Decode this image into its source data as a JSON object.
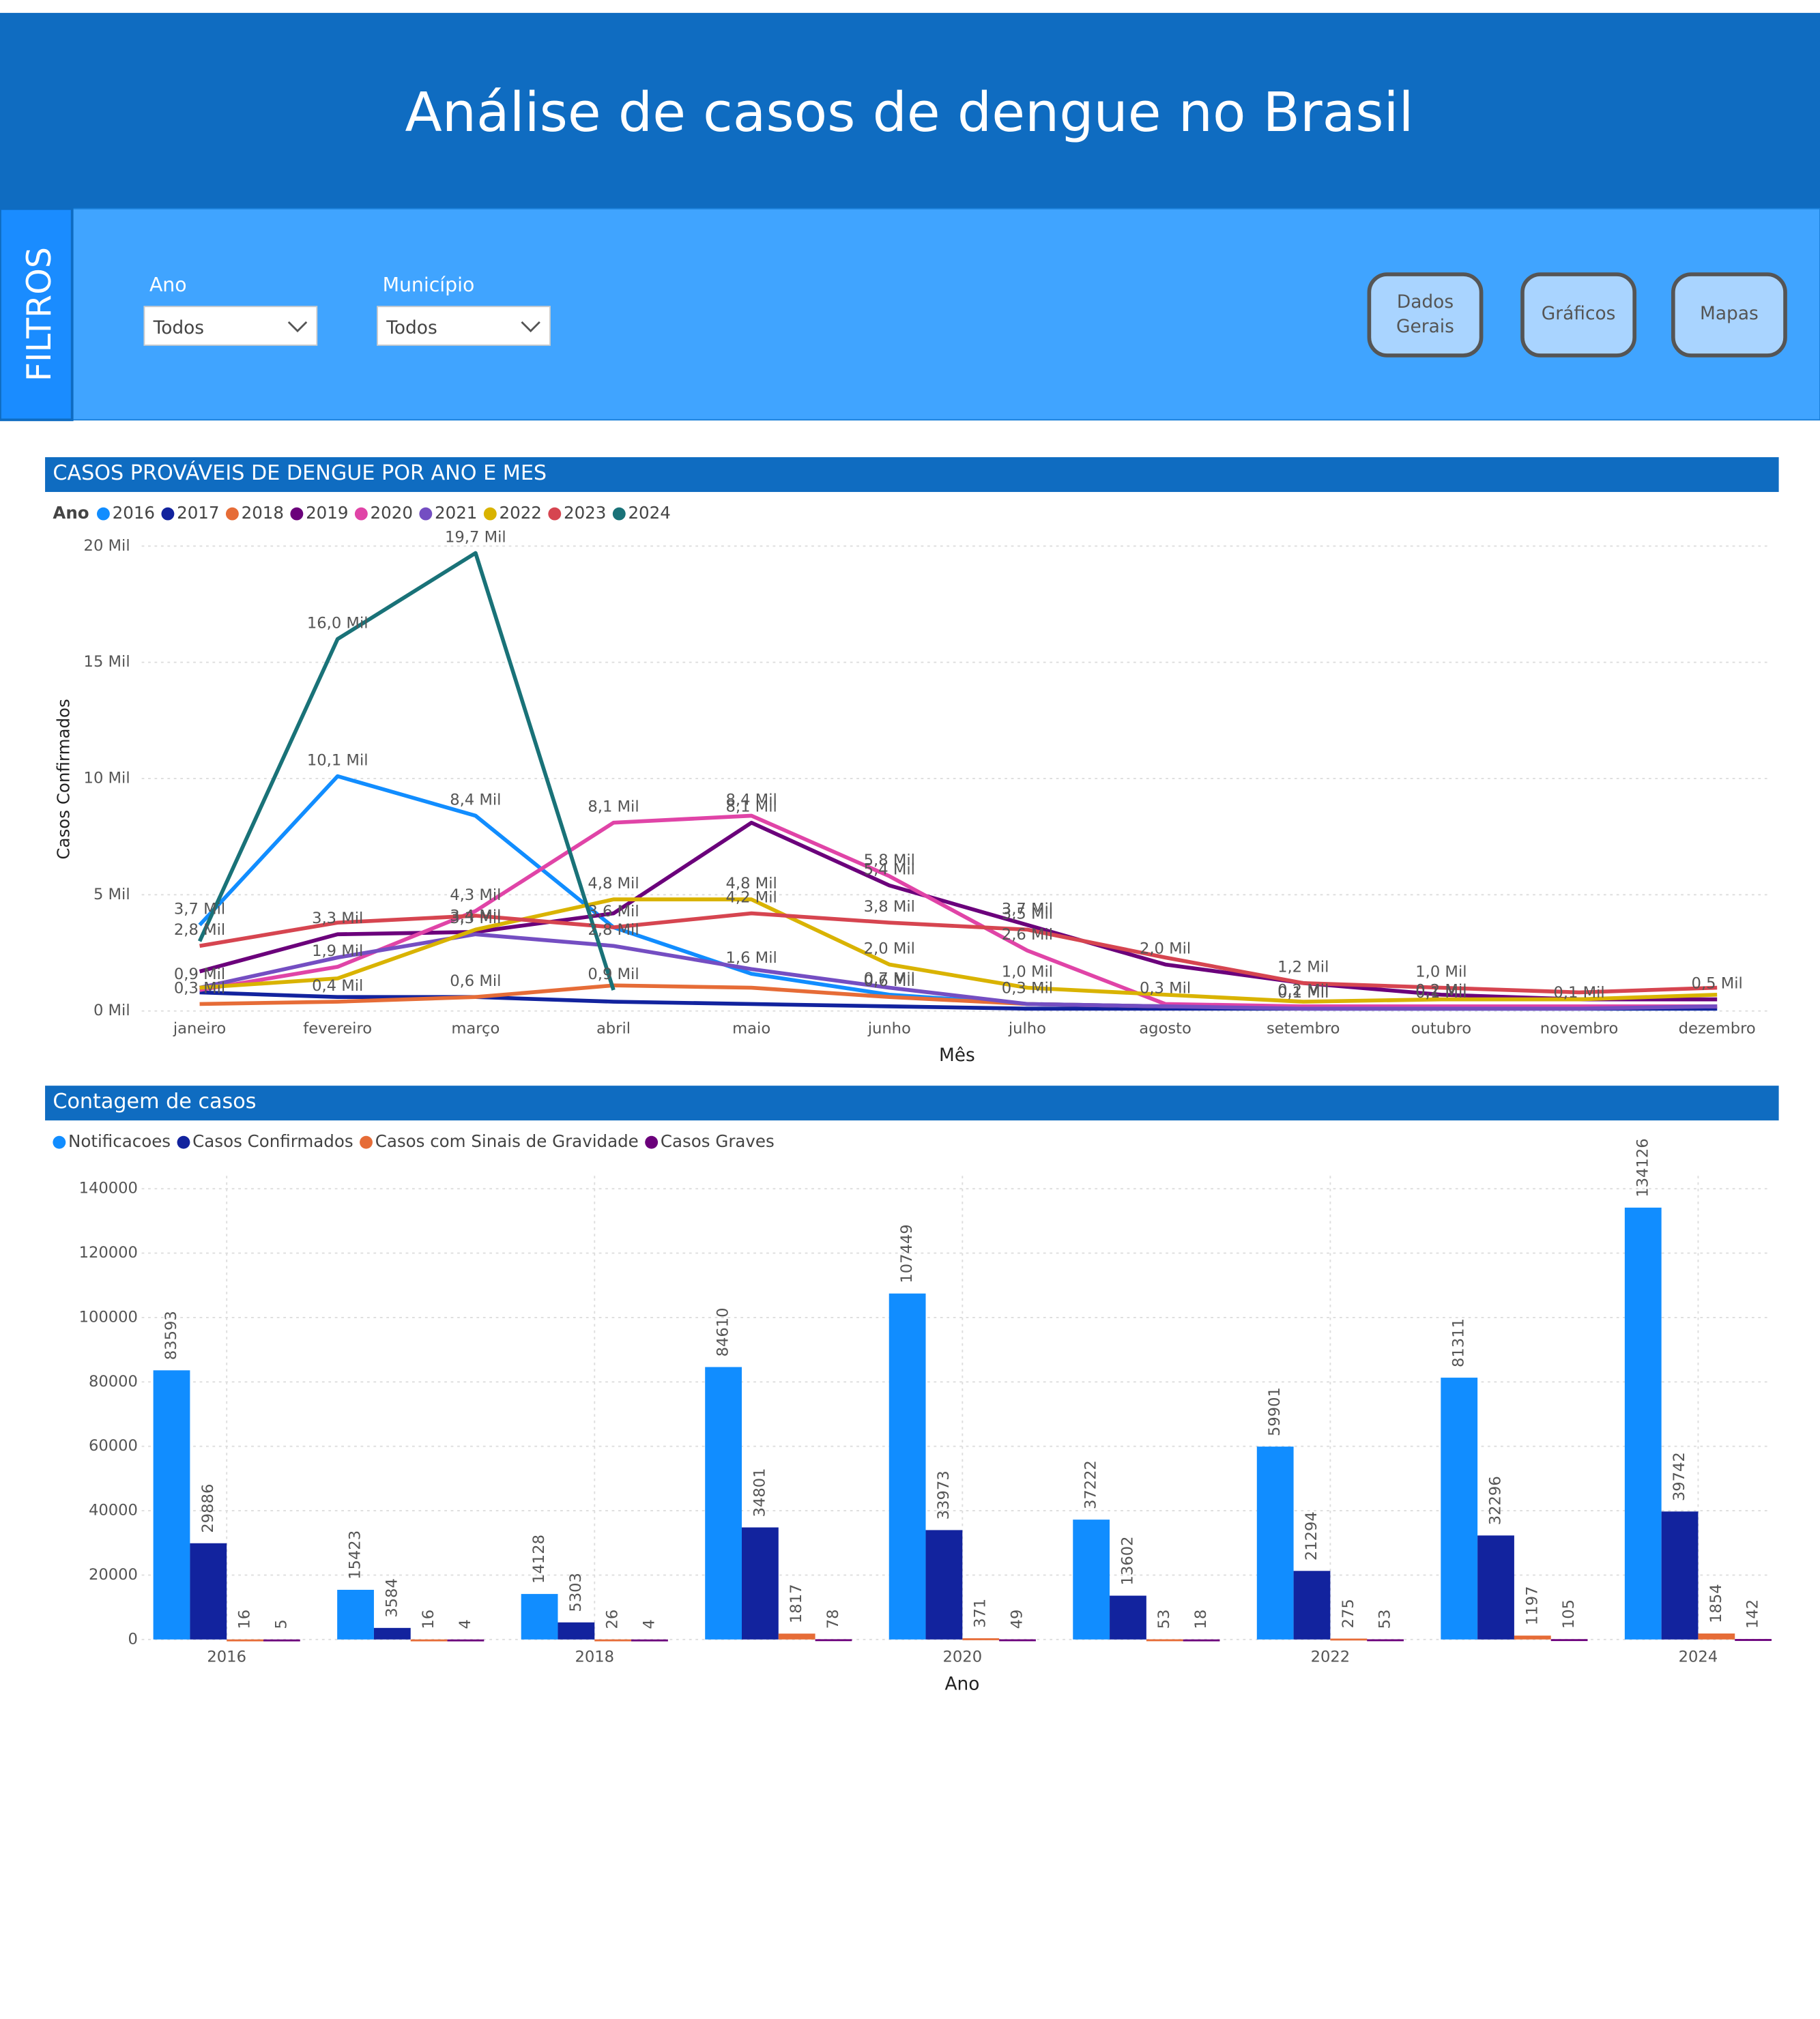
{
  "header": {
    "title": "Análise de casos de dengue no Brasil"
  },
  "filters": {
    "title": "FILTROS",
    "fields": [
      {
        "label": "Ano",
        "value": "Todos"
      },
      {
        "label": "Município",
        "value": "Todos"
      }
    ]
  },
  "buttons": [
    "Dados Gerais",
    "Gráficos",
    "Mapas"
  ],
  "chart_data": [
    {
      "type": "line",
      "title": "CASOS PROVÁVEIS DE DENGUE POR ANO E MES",
      "legend_title": "Ano",
      "x_label": "Mês",
      "y_label": "Casos Confirmados",
      "categories": [
        "janeiro",
        "fevereiro",
        "março",
        "abril",
        "maio",
        "junho",
        "julho",
        "agosto",
        "setembro",
        "outubro",
        "novembro",
        "dezembro"
      ],
      "ylim": [
        0,
        20000
      ],
      "yticks": [
        {
          "value": 0,
          "label": "0 Mil"
        },
        {
          "value": 5000,
          "label": "5 Mil"
        },
        {
          "value": 10000,
          "label": "10 Mil"
        },
        {
          "value": 15000,
          "label": "15 Mil"
        },
        {
          "value": 20000,
          "label": "20 Mil"
        }
      ],
      "grid": true,
      "series": [
        {
          "name": "2016",
          "color": "#118dff",
          "values": [
            3700,
            10100,
            8400,
            3600,
            1600,
            700,
            300,
            200,
            100,
            100,
            100,
            100
          ],
          "value_labels": [
            "3,7 Mil",
            "10,1 Mil",
            "8,4 Mil",
            "3,6 Mil",
            "1,6 Mil",
            "0,7 Mil",
            "0,3 Mil",
            null,
            null,
            null,
            null,
            null
          ]
        },
        {
          "name": "2017",
          "color": "#12239e",
          "values": [
            800,
            600,
            600,
            400,
            300,
            200,
            100,
            100,
            100,
            100,
            100,
            100
          ],
          "value_labels": [
            null,
            null,
            null,
            null,
            null,
            null,
            null,
            null,
            "0,1 Mil",
            "0,1 Mil",
            null,
            null
          ]
        },
        {
          "name": "2018",
          "color": "#e66c37",
          "values": [
            300,
            400,
            600,
            1100,
            1000,
            600,
            300,
            200,
            200,
            200,
            200,
            200
          ],
          "value_labels": [
            "0,3 Mil",
            "0,4 Mil",
            "0,6 Mil",
            null,
            null,
            "0,6 Mil",
            null,
            null,
            "0,2 Mil",
            "0,2 Mil",
            null,
            null
          ]
        },
        {
          "name": "2019",
          "color": "#6b007b",
          "values": [
            1700,
            3300,
            3400,
            4200,
            8100,
            5400,
            3700,
            2000,
            1200,
            700,
            500,
            500
          ],
          "value_labels": [
            null,
            "3,3 Mil",
            "3,4 Mil",
            null,
            "8,1 Mil",
            "5,4 Mil",
            "3,7 Mil",
            "2,0 Mil",
            "1,2 Mil",
            null,
            null,
            "0,5 Mil"
          ]
        },
        {
          "name": "2020",
          "color": "#e044a7",
          "values": [
            900,
            1900,
            4300,
            8100,
            8400,
            5800,
            2600,
            300,
            200,
            200,
            200,
            200
          ],
          "value_labels": [
            "0,9 Mil",
            "1,9 Mil",
            "4,3 Mil",
            "8,1 Mil",
            "8,4 Mil",
            "5,8 Mil",
            "2,6 Mil",
            "0,3 Mil",
            null,
            null,
            null,
            null
          ]
        },
        {
          "name": "2021",
          "color": "#744ec2",
          "values": [
            1000,
            2300,
            3300,
            2800,
            1800,
            1000,
            300,
            200,
            100,
            100,
            100,
            200
          ],
          "value_labels": [
            null,
            null,
            "3,3 Mil",
            "2,8 Mil",
            null,
            null,
            null,
            null,
            null,
            null,
            "0,1 Mil",
            null
          ]
        },
        {
          "name": "2022",
          "color": "#d9b300",
          "values": [
            1000,
            1400,
            3500,
            4800,
            4800,
            2000,
            1000,
            700,
            400,
            500,
            500,
            700
          ],
          "value_labels": [
            null,
            null,
            null,
            "4,8 Mil",
            "4,8 Mil",
            "2,0 Mil",
            "1,0 Mil",
            null,
            null,
            null,
            null,
            null
          ]
        },
        {
          "name": "2023",
          "color": "#d64550",
          "values": [
            2800,
            3800,
            4100,
            3600,
            4200,
            3800,
            3500,
            2300,
            1200,
            1000,
            800,
            1000
          ],
          "value_labels": [
            "2,8 Mil",
            null,
            null,
            null,
            "4,2 Mil",
            "3,8 Mil",
            "3,5 Mil",
            null,
            null,
            "1,0 Mil",
            null,
            null
          ]
        },
        {
          "name": "2024",
          "color": "#197278",
          "values": [
            3000,
            16000,
            19700,
            900,
            null,
            null,
            null,
            null,
            null,
            null,
            null,
            null
          ],
          "value_labels": [
            null,
            "16,0 Mil",
            "19,7 Mil",
            "0,9 Mil",
            null,
            null,
            null,
            null,
            null,
            null,
            null,
            null
          ]
        }
      ]
    },
    {
      "type": "bar",
      "title": "Contagem de casos",
      "x_label": "Ano",
      "categories": [
        "2016",
        null,
        "2018",
        null,
        "2020",
        null,
        "2022",
        null,
        "2024"
      ],
      "ylim": [
        0,
        140000
      ],
      "yticks": [
        0,
        20000,
        40000,
        60000,
        80000,
        100000,
        120000,
        140000
      ],
      "grid": true,
      "series": [
        {
          "name": "Notificacoes",
          "color": "#118dff",
          "values": [
            83593,
            15423,
            14128,
            84610,
            107449,
            37222,
            59901,
            81311,
            134126
          ]
        },
        {
          "name": "Casos Confirmados",
          "color": "#12239e",
          "values": [
            29886,
            3584,
            5303,
            34801,
            33973,
            13602,
            21294,
            32296,
            39742
          ]
        },
        {
          "name": "Casos com Sinais de Gravidade",
          "color": "#e66c37",
          "values": [
            16,
            16,
            26,
            1817,
            371,
            53,
            275,
            1197,
            1854
          ]
        },
        {
          "name": "Casos Graves",
          "color": "#6b007b",
          "values": [
            5,
            4,
            4,
            78,
            49,
            18,
            53,
            105,
            142
          ]
        }
      ]
    }
  ]
}
